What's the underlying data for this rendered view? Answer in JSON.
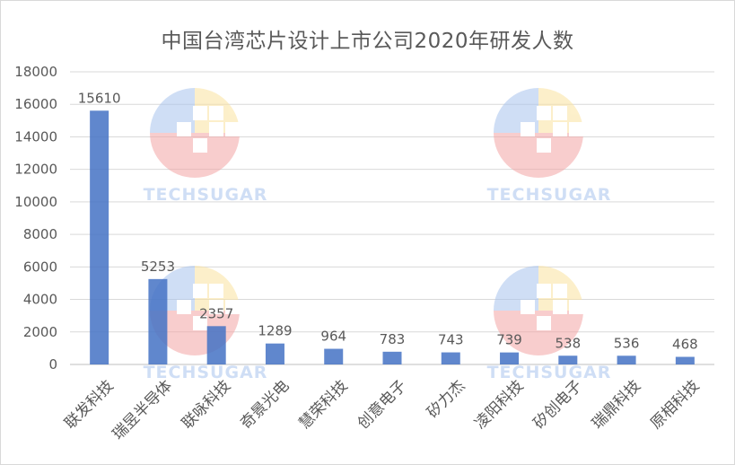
{
  "chart_data": {
    "type": "bar",
    "title": "中国台湾芯片设计上市公司2020年研发人数",
    "categories": [
      "联发科技",
      "瑞昱半导体",
      "联咏科技",
      "奇景光电",
      "慧荣科技",
      "创意电子",
      "矽力杰",
      "凌阳科技",
      "矽创电子",
      "瑞鼎科技",
      "原相科技"
    ],
    "values": [
      15610,
      5253,
      2357,
      1289,
      964,
      783,
      743,
      739,
      538,
      536,
      468
    ],
    "data_labels": [
      "15610",
      "5253",
      "2357",
      "1289",
      "964",
      "783",
      "743",
      "739",
      "538",
      "536",
      "468"
    ],
    "ylim": [
      0,
      18000
    ],
    "yticks": [
      "0",
      "2000",
      "4000",
      "6000",
      "8000",
      "10000",
      "12000",
      "14000",
      "16000",
      "18000"
    ],
    "xlabel": "",
    "ylabel": "",
    "grid": true,
    "legend": "none",
    "bar_color": "#4472c4"
  },
  "watermark": {
    "text": "TECHSUGAR",
    "colors": [
      "#a9c4ee",
      "#f4a6a6",
      "#fbe3a0",
      "#a9d9b0"
    ]
  }
}
